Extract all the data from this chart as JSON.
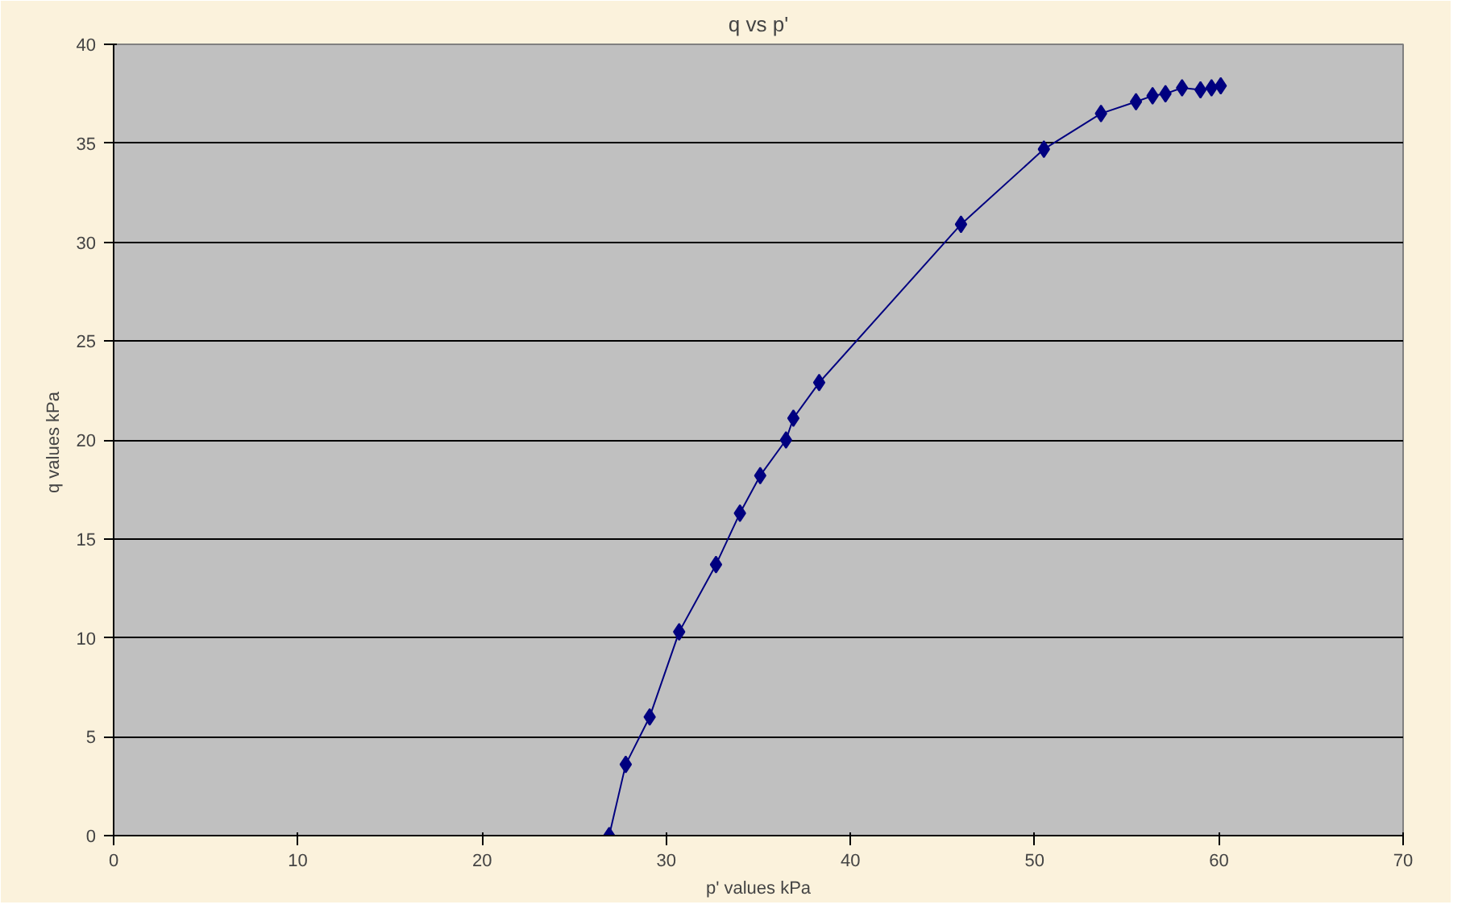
{
  "chart_data": {
    "type": "line",
    "title": "q vs p'",
    "xlabel": "p' values kPa",
    "ylabel": "q values  kPa",
    "x": [
      26.9,
      27.8,
      29.1,
      30.7,
      32.7,
      34.0,
      35.1,
      36.5,
      36.9,
      38.3,
      46.0,
      50.5,
      53.6,
      55.5,
      56.4,
      57.1,
      58.0,
      59.0,
      59.6,
      60.1
    ],
    "series": [
      {
        "color": "#000080",
        "values": [
          0,
          3.6,
          6.0,
          10.3,
          13.7,
          16.3,
          18.2,
          20.0,
          21.1,
          22.9,
          30.9,
          34.7,
          36.5,
          37.1,
          37.4,
          37.5,
          37.8,
          37.7,
          37.8,
          37.9
        ]
      }
    ],
    "xlim": [
      0,
      70
    ],
    "xticks": [
      0,
      10,
      20,
      30,
      40,
      50,
      60,
      70
    ],
    "ylim": [
      0,
      40
    ],
    "yticks": [
      0,
      5,
      10,
      15,
      20,
      25,
      30,
      35,
      40
    ],
    "grid": "y",
    "marker": "diamond",
    "line_style": "solid"
  }
}
